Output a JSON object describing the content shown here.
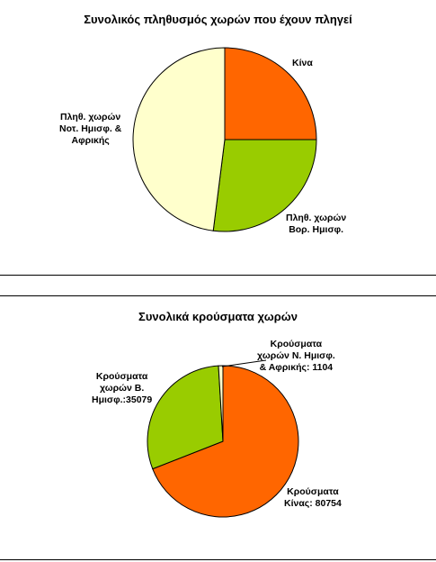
{
  "chart_data": [
    {
      "type": "pie",
      "title": "Συνολικός πληθυσμός χωρών που έχουν πληγεί",
      "slices": [
        {
          "label_lines": [
            "Κίνα"
          ],
          "value": 25.0,
          "color": "#FF6600"
        },
        {
          "label_lines": [
            "Πληθ. χωρών",
            "Βορ. Ημισφ."
          ],
          "value": 27.0,
          "color": "#99CC00"
        },
        {
          "label_lines": [
            "Πληθ. χωρών",
            "Νοτ. Ημισφ. &",
            "Αφρικής"
          ],
          "value": 48.0,
          "color": "#FFFFCC"
        }
      ]
    },
    {
      "type": "pie",
      "title": "Συνολικά κρούσματα χωρών",
      "slices": [
        {
          "label_lines": [
            "Κρούσματα",
            "Κίνας: 80754"
          ],
          "value": 80754,
          "color": "#FF6600"
        },
        {
          "label_lines": [
            "Κρούσματα",
            "χωρών Β.",
            "Ημισφ.:35079"
          ],
          "value": 35079,
          "color": "#99CC00"
        },
        {
          "label_lines": [
            "Κρούσματα",
            "χωρών Ν. Ημισφ.",
            "& Αφρικής: 1104"
          ],
          "value": 1104,
          "color": "#FFFFCC"
        }
      ]
    }
  ]
}
